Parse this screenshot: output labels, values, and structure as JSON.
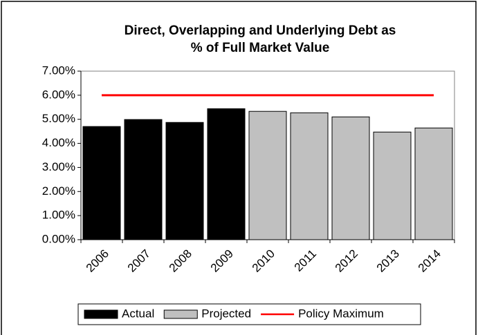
{
  "chart_data": {
    "type": "bar",
    "title": [
      "Direct, Overlapping and Underlying Debt as",
      "% of Full Market Value"
    ],
    "categories": [
      "2006",
      "2007",
      "2008",
      "2009",
      "2010",
      "2011",
      "2012",
      "2013",
      "2014"
    ],
    "series": [
      {
        "name": "Actual",
        "color": "#000000",
        "values": [
          4.7,
          4.99,
          4.87,
          5.44,
          null,
          null,
          null,
          null,
          null
        ]
      },
      {
        "name": "Projected",
        "color": "#c0c0c0",
        "values": [
          null,
          null,
          null,
          null,
          5.33,
          5.27,
          5.1,
          4.47,
          4.64
        ]
      },
      {
        "name": "Policy Maximum",
        "color": "#ff0000",
        "type": "line",
        "values": [
          6,
          6,
          6,
          6,
          6,
          6,
          6,
          6,
          6
        ]
      }
    ],
    "ylim": [
      0,
      7
    ],
    "yticks": [
      {
        "value": 0,
        "label": "0.00%"
      },
      {
        "value": 1,
        "label": "1.00%"
      },
      {
        "value": 2,
        "label": "2.00%"
      },
      {
        "value": 3,
        "label": "3.00%"
      },
      {
        "value": 4,
        "label": "4.00%"
      },
      {
        "value": 5,
        "label": "5.00%"
      },
      {
        "value": 6,
        "label": "6.00%"
      },
      {
        "value": 7,
        "label": "7.00%"
      }
    ],
    "grid": false,
    "legend": "bottom"
  }
}
